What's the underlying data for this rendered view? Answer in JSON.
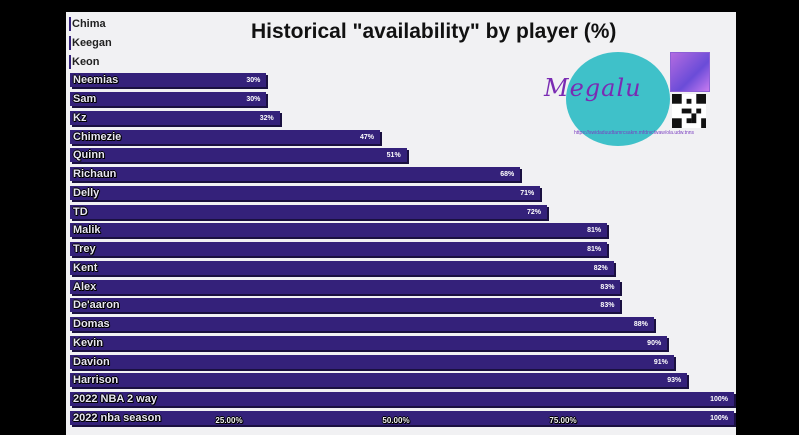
{
  "chart_data": {
    "type": "bar",
    "orientation": "horizontal",
    "title": "Historical \"availability\" by player (%)",
    "categories": [
      "Chima",
      "Keegan",
      "Keon",
      "Neemias",
      "Sam",
      "Kz",
      "Chimezie",
      "Quinn",
      "Richaun",
      "Delly",
      "TD",
      "Malik",
      "Trey",
      "Kent",
      "Alex",
      "De'aaron",
      "Domas",
      "Kevin",
      "Davion",
      "Harrison",
      "2022 NBA 2 way",
      "2022 nba season"
    ],
    "values": [
      0,
      0,
      0,
      30,
      30,
      32,
      47,
      51,
      68,
      71,
      72,
      81,
      81,
      82,
      83,
      83,
      88,
      90,
      91,
      93,
      100,
      100
    ],
    "value_labels": [
      "",
      "",
      "",
      "30%",
      "30%",
      "32%",
      "47%",
      "51%",
      "68%",
      "71%",
      "72%",
      "81%",
      "81%",
      "82%",
      "83%",
      "83%",
      "88%",
      "90%",
      "91%",
      "93%",
      "100%",
      "100%"
    ],
    "xlim": [
      0,
      100
    ],
    "x_ticks": [
      25,
      50,
      75
    ],
    "x_tick_labels": [
      "25.00%",
      "50.00%",
      "75.00%"
    ],
    "xlabel": "",
    "ylabel": "",
    "grid": false,
    "bar_color": "#34217a"
  },
  "logo": {
    "text": "Megalu",
    "url_text": "https://swidaduudtamrcsakm.mfdrvclwaw/ola.udw.tnns",
    "circle_color": "#3fc1c9",
    "text_color": "#7a2bb3"
  }
}
